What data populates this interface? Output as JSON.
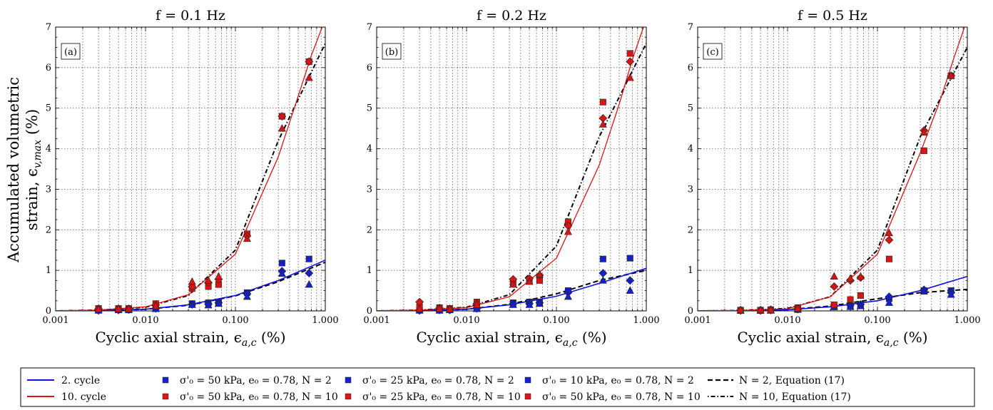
{
  "figure": {
    "ylabel_line1": "Accumulated volumetric",
    "ylabel_line2": "strain, ϵ",
    "ylabel_sub": "v,max",
    "ylabel_unit": " (%)",
    "xlabel": "Cyclic axial strain, ϵ",
    "xlabel_sub": "a,c",
    "xlabel_unit": " (%)"
  },
  "legend": {
    "col1": [
      {
        "label": "2. cycle",
        "color": "#1010e0",
        "kind": "line-solid"
      },
      {
        "label": "10. cycle",
        "color": "#e01010",
        "kind": "line-solid"
      }
    ],
    "col2": [
      {
        "label": "σ'₀ = 50 kPa, e₀ = 0.78, N = 2",
        "color": "#1520c8",
        "kind": "marker-square"
      },
      {
        "label": "σ'₀ = 50 kPa, e₀ = 0.78, N = 10",
        "color": "#d81515",
        "kind": "marker-square"
      }
    ],
    "col3": [
      {
        "label": "σ'₀ = 25 kPa, e₀ = 0.78, N = 2",
        "color": "#1520c8",
        "kind": "marker-square"
      },
      {
        "label": "σ'₀ = 25 kPa, e₀ = 0.78, N = 10",
        "color": "#d81515",
        "kind": "marker-square"
      }
    ],
    "col4": [
      {
        "label": "σ'₀ = 10 kPa, e₀ = 0.78, N = 2",
        "color": "#1520c8",
        "kind": "marker-square"
      },
      {
        "label": "σ'₀ = 50 kPa, e₀ = 0.78, N = 10",
        "color": "#d81515",
        "kind": "marker-square"
      }
    ],
    "col5": [
      {
        "label": "N = 2, Equation (17)",
        "color": "#000000",
        "kind": "line-dashed"
      },
      {
        "label": "N = 10, Equation (17)",
        "color": "#000000",
        "kind": "line-dashdot"
      }
    ]
  },
  "chart_data": [
    {
      "type": "scatter",
      "panel": "(a)",
      "title": "f = 0.1 Hz",
      "x_scale": "log",
      "xlim": [
        0.001,
        1.0
      ],
      "ylim": [
        0,
        7
      ],
      "x_ticks": [
        "0.001",
        "0.010",
        "0.100",
        "1.000"
      ],
      "y_ticks": [
        "0",
        "1",
        "2",
        "3",
        "4",
        "5",
        "6",
        "7"
      ],
      "grid": true,
      "series": [
        {
          "name": "σ'₀ = 50 kPa, N = 2",
          "color": "#1520c8",
          "marker": "square",
          "x": [
            0.003,
            0.005,
            0.0065,
            0.013,
            0.033,
            0.05,
            0.065,
            0.135,
            0.33,
            0.66
          ],
          "y": [
            0.02,
            0.03,
            0.04,
            0.08,
            0.18,
            0.2,
            0.22,
            0.45,
            1.18,
            1.28
          ]
        },
        {
          "name": "σ'₀ = 25 kPa, N = 2",
          "color": "#1520c8",
          "marker": "diamond",
          "x": [
            0.003,
            0.005,
            0.0065,
            0.013,
            0.033,
            0.05,
            0.065,
            0.135,
            0.33,
            0.66
          ],
          "y": [
            0.01,
            0.02,
            0.03,
            0.06,
            0.16,
            0.17,
            0.2,
            0.42,
            0.98,
            0.93
          ]
        },
        {
          "name": "σ'₀ = 10 kPa, N = 2",
          "color": "#1520c8",
          "marker": "triangle",
          "x": [
            0.003,
            0.005,
            0.0065,
            0.013,
            0.033,
            0.05,
            0.065,
            0.135,
            0.33,
            0.66
          ],
          "y": [
            0.01,
            0.02,
            0.02,
            0.05,
            0.15,
            0.14,
            0.18,
            0.35,
            0.92,
            0.65
          ]
        },
        {
          "name": "σ'₀ = 50 kPa, N = 10",
          "color": "#d81515",
          "marker": "square",
          "x": [
            0.003,
            0.005,
            0.0065,
            0.013,
            0.033,
            0.05,
            0.065,
            0.135,
            0.33,
            0.66
          ],
          "y": [
            0.06,
            0.06,
            0.06,
            0.18,
            0.55,
            0.6,
            0.65,
            1.9,
            4.8,
            6.15
          ]
        },
        {
          "name": "σ'₀ = 25 kPa, N = 10",
          "color": "#d81515",
          "marker": "diamond",
          "x": [
            0.003,
            0.005,
            0.0065,
            0.013,
            0.033,
            0.05,
            0.065,
            0.135,
            0.33,
            0.66
          ],
          "y": [
            0.05,
            0.05,
            0.05,
            0.15,
            0.6,
            0.7,
            0.78,
            1.85,
            4.8,
            6.15
          ]
        },
        {
          "name": "σ'₀ = 50 kPa (2), N = 10",
          "color": "#d81515",
          "marker": "triangle",
          "x": [
            0.003,
            0.005,
            0.0065,
            0.013,
            0.033,
            0.05,
            0.065,
            0.135,
            0.33,
            0.66
          ],
          "y": [
            0.04,
            0.05,
            0.05,
            0.12,
            0.72,
            0.75,
            0.85,
            1.78,
            4.5,
            5.75
          ]
        }
      ],
      "curves": {
        "cycle2": {
          "x": [
            0.001,
            0.003,
            0.01,
            0.03,
            0.1,
            0.3,
            1.0
          ],
          "y": [
            0.0,
            0.005,
            0.04,
            0.15,
            0.38,
            0.75,
            1.25
          ]
        },
        "cycle10": {
          "x": [
            0.001,
            0.003,
            0.01,
            0.03,
            0.1,
            0.3,
            0.5,
            0.7,
            1.0
          ],
          "y": [
            0.0,
            0.02,
            0.1,
            0.4,
            1.4,
            3.8,
            5.3,
            6.3,
            7.2
          ]
        },
        "eq_N2": {
          "x": [
            0.001,
            0.003,
            0.01,
            0.03,
            0.1,
            0.3,
            1.0
          ],
          "y": [
            0.0,
            0.005,
            0.04,
            0.14,
            0.37,
            0.72,
            1.2
          ]
        },
        "eq_N10": {
          "x": [
            0.001,
            0.003,
            0.01,
            0.03,
            0.1,
            0.3,
            1.0
          ],
          "y": [
            0.0,
            0.02,
            0.09,
            0.38,
            1.5,
            4.2,
            6.6
          ]
        }
      }
    },
    {
      "type": "scatter",
      "panel": "(b)",
      "title": "f = 0.2 Hz",
      "x_scale": "log",
      "xlim": [
        0.001,
        1.0
      ],
      "ylim": [
        0,
        7
      ],
      "x_ticks": [
        "0.001",
        "0.010",
        "0.100",
        "1.000"
      ],
      "y_ticks": [
        "0",
        "1",
        "2",
        "3",
        "4",
        "5",
        "6",
        "7"
      ],
      "grid": true,
      "series": [
        {
          "name": "σ'₀ = 50 kPa, N = 2",
          "color": "#1520c8",
          "marker": "square",
          "x": [
            0.003,
            0.005,
            0.0065,
            0.013,
            0.033,
            0.05,
            0.065,
            0.135,
            0.33,
            0.66
          ],
          "y": [
            0.02,
            0.03,
            0.03,
            0.08,
            0.2,
            0.22,
            0.22,
            0.5,
            1.28,
            1.3
          ]
        },
        {
          "name": "σ'₀ = 25 kPa, N = 2",
          "color": "#1520c8",
          "marker": "diamond",
          "x": [
            0.003,
            0.005,
            0.0065,
            0.013,
            0.033,
            0.05,
            0.065,
            0.135,
            0.33,
            0.66
          ],
          "y": [
            0.01,
            0.02,
            0.02,
            0.06,
            0.18,
            0.18,
            0.2,
            0.45,
            0.93,
            0.75
          ]
        },
        {
          "name": "σ'₀ = 10 kPa, N = 2",
          "color": "#1520c8",
          "marker": "triangle",
          "x": [
            0.003,
            0.005,
            0.0065,
            0.013,
            0.033,
            0.05,
            0.065,
            0.135,
            0.33,
            0.66
          ],
          "y": [
            0.01,
            0.01,
            0.02,
            0.05,
            0.15,
            0.15,
            0.18,
            0.35,
            0.75,
            0.5
          ]
        },
        {
          "name": "σ'₀ = 50 kPa, N = 10",
          "color": "#d81515",
          "marker": "square",
          "x": [
            0.003,
            0.005,
            0.0065,
            0.013,
            0.033,
            0.05,
            0.065,
            0.135,
            0.33,
            0.66
          ],
          "y": [
            0.1,
            0.08,
            0.06,
            0.22,
            0.7,
            0.75,
            0.75,
            2.2,
            5.15,
            6.35
          ]
        },
        {
          "name": "σ'₀ = 25 kPa, N = 10",
          "color": "#d81515",
          "marker": "diamond",
          "x": [
            0.003,
            0.005,
            0.0065,
            0.013,
            0.033,
            0.05,
            0.065,
            0.135,
            0.33,
            0.66
          ],
          "y": [
            0.22,
            0.07,
            0.05,
            0.18,
            0.78,
            0.8,
            0.88,
            2.1,
            4.75,
            6.15
          ]
        },
        {
          "name": "σ'₀ = 50 kPa (2), N = 10",
          "color": "#d81515",
          "marker": "triangle",
          "x": [
            0.003,
            0.005,
            0.0065,
            0.013,
            0.033,
            0.05,
            0.065,
            0.135,
            0.33,
            0.66
          ],
          "y": [
            0.05,
            0.05,
            0.04,
            0.15,
            0.65,
            0.72,
            0.9,
            1.95,
            4.6,
            5.75
          ]
        }
      ],
      "curves": {
        "cycle2": {
          "x": [
            0.001,
            0.003,
            0.01,
            0.03,
            0.1,
            0.3,
            1.0
          ],
          "y": [
            0.0,
            0.005,
            0.04,
            0.15,
            0.36,
            0.68,
            1.05
          ]
        },
        "cycle10": {
          "x": [
            0.001,
            0.003,
            0.01,
            0.03,
            0.1,
            0.3,
            0.5,
            0.7,
            1.0
          ],
          "y": [
            0.0,
            0.02,
            0.08,
            0.35,
            1.3,
            3.6,
            5.1,
            6.2,
            7.2
          ]
        },
        "eq_N2": {
          "x": [
            0.001,
            0.003,
            0.01,
            0.03,
            0.1,
            0.3,
            1.0
          ],
          "y": [
            0.0,
            0.005,
            0.04,
            0.16,
            0.42,
            0.75,
            1.0
          ]
        },
        "eq_N10": {
          "x": [
            0.001,
            0.003,
            0.01,
            0.03,
            0.1,
            0.3,
            1.0
          ],
          "y": [
            0.0,
            0.02,
            0.09,
            0.4,
            1.6,
            4.3,
            6.6
          ]
        }
      }
    },
    {
      "type": "scatter",
      "panel": "(c)",
      "title": "f = 0.5 Hz",
      "x_scale": "log",
      "xlim": [
        0.001,
        1.0
      ],
      "ylim": [
        0,
        7
      ],
      "x_ticks": [
        "0.001",
        "0.010",
        "0.100",
        "1.000"
      ],
      "y_ticks": [
        "0",
        "1",
        "2",
        "3",
        "4",
        "5",
        "6",
        "7"
      ],
      "grid": true,
      "series": [
        {
          "name": "σ'₀ = 50 kPa, N = 2",
          "color": "#1520c8",
          "marker": "square",
          "x": [
            0.003,
            0.005,
            0.0065,
            0.013,
            0.033,
            0.05,
            0.065,
            0.135,
            0.33,
            0.66
          ],
          "y": [
            0.01,
            0.01,
            0.02,
            0.05,
            0.1,
            0.12,
            0.15,
            0.3,
            0.5,
            0.5
          ]
        },
        {
          "name": "σ'₀ = 25 kPa, N = 2",
          "color": "#1520c8",
          "marker": "diamond",
          "x": [
            0.003,
            0.005,
            0.0065,
            0.013,
            0.033,
            0.05,
            0.065,
            0.135,
            0.33,
            0.66
          ],
          "y": [
            0.01,
            0.01,
            0.02,
            0.04,
            0.12,
            0.14,
            0.16,
            0.35,
            0.52,
            0.45
          ]
        },
        {
          "name": "σ'₀ = 10 kPa, N = 2",
          "color": "#1520c8",
          "marker": "triangle",
          "x": [
            0.003,
            0.005,
            0.0065,
            0.013,
            0.033,
            0.05,
            0.065,
            0.135,
            0.33,
            0.66
          ],
          "y": [
            0.01,
            0.01,
            0.01,
            0.03,
            0.1,
            0.1,
            0.12,
            0.2,
            0.48,
            0.4
          ]
        },
        {
          "name": "σ'₀ = 50 kPa, N = 10",
          "color": "#d81515",
          "marker": "square",
          "x": [
            0.003,
            0.005,
            0.0065,
            0.013,
            0.033,
            0.05,
            0.065,
            0.135,
            0.33,
            0.66
          ],
          "y": [
            0.02,
            0.02,
            0.03,
            0.08,
            0.15,
            0.28,
            0.38,
            1.28,
            3.95,
            5.8
          ]
        },
        {
          "name": "σ'₀ = 25 kPa, N = 10",
          "color": "#d81515",
          "marker": "diamond",
          "x": [
            0.003,
            0.005,
            0.0065,
            0.013,
            0.033,
            0.05,
            0.065,
            0.135,
            0.33,
            0.66
          ],
          "y": [
            0.02,
            0.02,
            0.03,
            0.06,
            0.6,
            0.75,
            0.82,
            1.75,
            4.45,
            5.8
          ]
        },
        {
          "name": "σ'₀ = 50 kPa (2), N = 10",
          "color": "#d81515",
          "marker": "triangle",
          "x": [
            0.003,
            0.005,
            0.0065,
            0.013,
            0.033,
            0.05,
            0.065,
            0.135,
            0.33,
            0.66
          ],
          "y": [
            0.02,
            0.02,
            0.02,
            0.06,
            0.85,
            0.8,
            0.85,
            1.92,
            4.4,
            5.8
          ]
        }
      ],
      "curves": {
        "cycle2": {
          "x": [
            0.001,
            0.003,
            0.01,
            0.03,
            0.1,
            0.3,
            1.0
          ],
          "y": [
            0.0,
            0.005,
            0.03,
            0.1,
            0.25,
            0.5,
            0.85
          ]
        },
        "cycle10": {
          "x": [
            0.001,
            0.003,
            0.01,
            0.03,
            0.1,
            0.3,
            0.5,
            0.7,
            1.0
          ],
          "y": [
            0.0,
            0.01,
            0.05,
            0.35,
            1.4,
            3.9,
            5.2,
            6.2,
            7.2
          ]
        },
        "eq_N2": {
          "x": [
            0.001,
            0.003,
            0.01,
            0.03,
            0.1,
            0.3,
            1.0
          ],
          "y": [
            0.0,
            0.005,
            0.03,
            0.12,
            0.3,
            0.45,
            0.53
          ]
        },
        "eq_N10": {
          "x": [
            0.001,
            0.003,
            0.01,
            0.03,
            0.1,
            0.3,
            1.0
          ],
          "y": [
            0.0,
            0.01,
            0.06,
            0.35,
            1.5,
            4.3,
            6.5
          ]
        }
      }
    }
  ]
}
